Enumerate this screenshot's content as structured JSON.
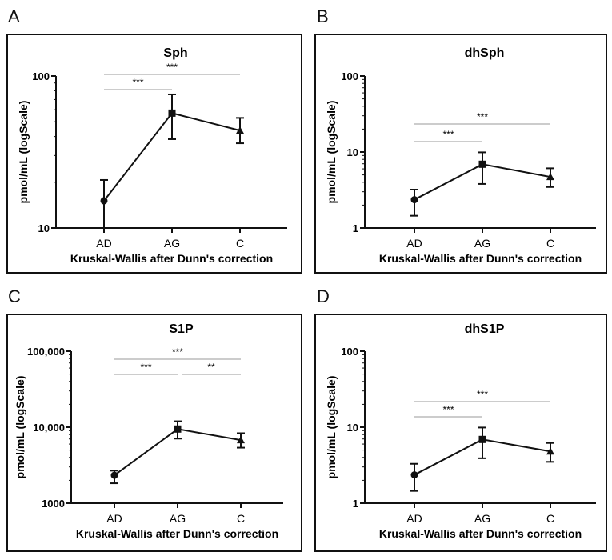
{
  "chart_data": [
    {
      "panel_letter": "A",
      "type": "line",
      "title": "Sph",
      "ylabel": "pmol/mL (logScale)",
      "xlabel": "Kruskal-Wallis after Dunn's correction",
      "yscale": "log",
      "ylim": [
        10,
        100
      ],
      "yticks": [
        "10",
        "100"
      ],
      "tickvals": [
        10,
        100
      ],
      "categories": [
        "AD",
        "AG",
        "C"
      ],
      "markers": [
        "circle",
        "square",
        "triangle"
      ],
      "values": [
        15.1,
        57,
        43.8
      ],
      "err_low": [
        10,
        38.4,
        36.1
      ],
      "err_high": [
        20.7,
        75.7,
        53
      ],
      "comparisons": [
        {
          "from": "AD",
          "to": "AG",
          "label": "***"
        },
        {
          "from": "AD",
          "to": "C",
          "label": "***"
        }
      ]
    },
    {
      "panel_letter": "B",
      "type": "line",
      "title": "dhSph",
      "ylabel": "pmol/mL (logScale)",
      "xlabel": "Kruskal-Wallis after Dunn's correction",
      "yscale": "log",
      "ylim": [
        1,
        100
      ],
      "yticks": [
        "1",
        "10",
        "100"
      ],
      "tickvals": [
        1,
        10,
        100
      ],
      "categories": [
        "AD",
        "AG",
        "C"
      ],
      "markers": [
        "circle",
        "square",
        "triangle"
      ],
      "values": [
        2.36,
        6.9,
        4.7
      ],
      "err_low": [
        1.45,
        3.8,
        3.46
      ],
      "err_high": [
        3.2,
        9.9,
        6.1
      ],
      "comparisons": [
        {
          "from": "AD",
          "to": "AG",
          "label": "***"
        },
        {
          "from": "AD",
          "to": "C",
          "label": "***"
        }
      ]
    },
    {
      "panel_letter": "C",
      "type": "line",
      "title": "S1P",
      "ylabel": "pmol/mL (logScale)",
      "xlabel": "Kruskal-Wallis after Dunn's correction",
      "yscale": "log",
      "ylim": [
        1000,
        100000
      ],
      "yticks": [
        "1000",
        "10,000",
        "100,000"
      ],
      "tickvals": [
        1000,
        10000,
        100000
      ],
      "categories": [
        "AD",
        "AG",
        "C"
      ],
      "markers": [
        "circle",
        "square",
        "triangle"
      ],
      "values": [
        2330,
        9460,
        6760
      ],
      "err_low": [
        1830,
        7080,
        5380
      ],
      "err_high": [
        2680,
        11970,
        8340
      ],
      "comparisons": [
        {
          "from": "AD",
          "to": "AG",
          "label": "***"
        },
        {
          "from": "AG",
          "to": "C",
          "label": "**"
        },
        {
          "from": "AD",
          "to": "C",
          "label": "***"
        }
      ]
    },
    {
      "panel_letter": "D",
      "type": "line",
      "title": "dhS1P",
      "ylabel": "pmol/mL (logScale)",
      "xlabel": "Kruskal-Wallis after Dunn's correction",
      "yscale": "log",
      "ylim": [
        1,
        100
      ],
      "yticks": [
        "1",
        "10",
        "100"
      ],
      "tickvals": [
        1,
        10,
        100
      ],
      "categories": [
        "AD",
        "AG",
        "C"
      ],
      "markers": [
        "circle",
        "square",
        "triangle"
      ],
      "values": [
        2.36,
        6.9,
        4.8
      ],
      "err_low": [
        1.45,
        3.9,
        3.5
      ],
      "err_high": [
        3.3,
        9.9,
        6.2
      ],
      "comparisons": [
        {
          "from": "AD",
          "to": "AG",
          "label": "***"
        },
        {
          "from": "AD",
          "to": "C",
          "label": "***"
        }
      ]
    }
  ]
}
